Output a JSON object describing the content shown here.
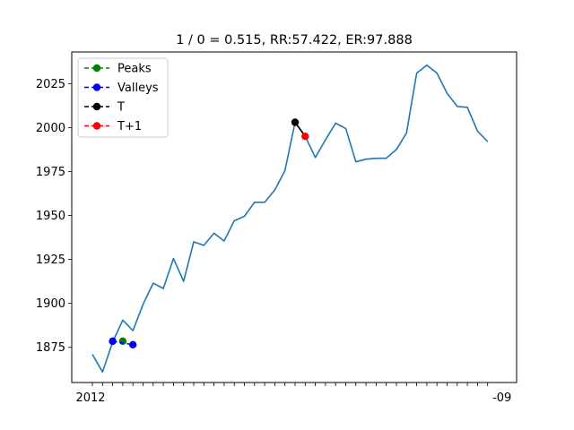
{
  "chart_data": {
    "type": "line",
    "title": "1 / 0 = 0.515, RR:57.422, ER:97.888",
    "xlabel": "",
    "ylabel": "",
    "x_tick_first": "2012",
    "x_tick_last": "-09",
    "ylim": [
      1855,
      2043
    ],
    "yticks": [
      "1875",
      "1900",
      "1925",
      "1950",
      "1975",
      "2000",
      "2025"
    ],
    "ytick_values": [
      1875,
      1900,
      1925,
      1950,
      1975,
      2000,
      2025
    ],
    "grid": false,
    "legend_position": "upper left",
    "series": [
      {
        "kind": "line",
        "color": "#1f77b4",
        "values": [
          1871,
          1861,
          1878,
          1890.5,
          1884.5,
          1899.5,
          1911.5,
          1908.5,
          1925.5,
          1912.5,
          1935,
          1933,
          1940,
          1935.5,
          1947,
          1949.5,
          1957.5,
          1957.5,
          1964.5,
          1975.5,
          2003,
          1995,
          1983,
          1993,
          2002.5,
          1999.5,
          1980.5,
          1982,
          1982.5,
          1982.5,
          1987.5,
          1997,
          2031,
          2035.5,
          2031,
          2019.5,
          2012,
          2011.5,
          1998,
          1992
        ]
      },
      {
        "name": "Peaks",
        "kind": "markers",
        "color": "#008000",
        "points": [
          {
            "x": 3,
            "y": 1878.5
          }
        ]
      },
      {
        "name": "Valleys",
        "kind": "markers",
        "color": "#0000ff",
        "points": [
          {
            "x": 2,
            "y": 1878.5
          },
          {
            "x": 4,
            "y": 1876.5
          }
        ]
      },
      {
        "name": "T",
        "kind": "markers",
        "color": "#000000",
        "points": [
          {
            "x": 20,
            "y": 2003
          }
        ]
      },
      {
        "name": "T+1",
        "kind": "markers",
        "color": "#ff0000",
        "points": [
          {
            "x": 21,
            "y": 1995
          }
        ]
      }
    ],
    "connector": {
      "color": "#000000",
      "from": {
        "x": 20,
        "y": 2003
      },
      "to": {
        "x": 21,
        "y": 1995
      }
    }
  }
}
